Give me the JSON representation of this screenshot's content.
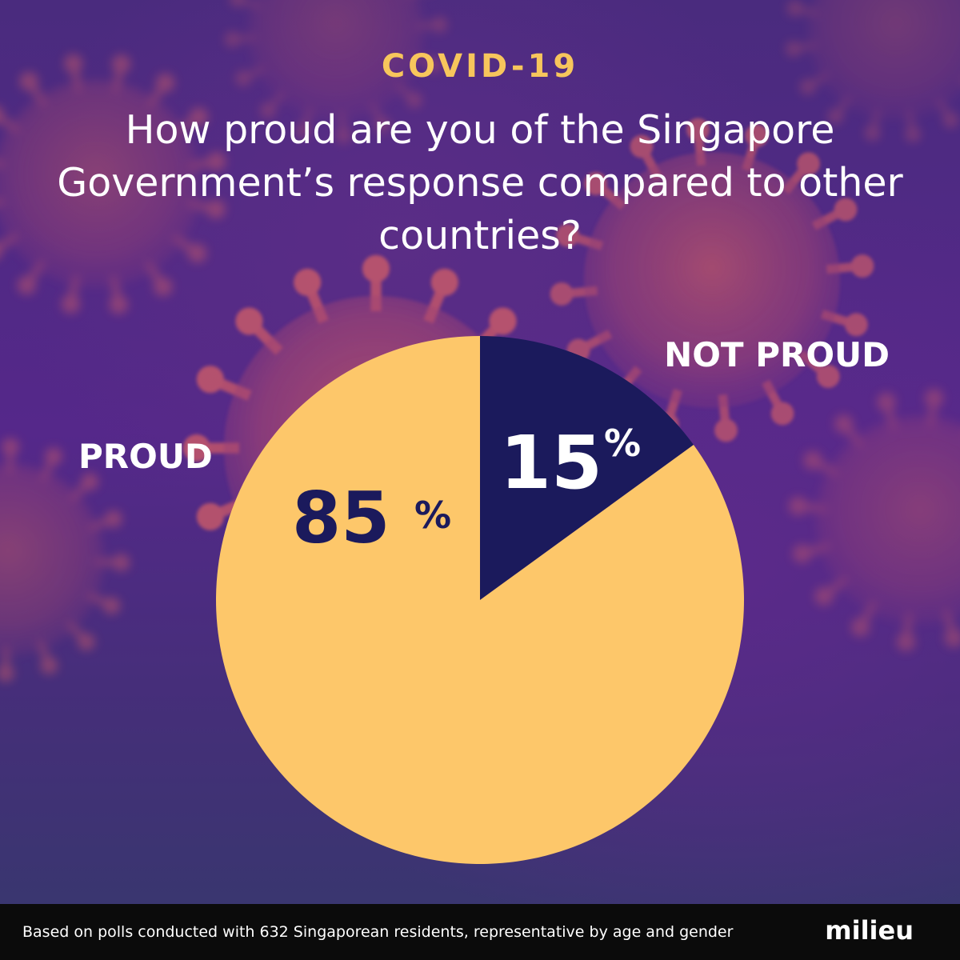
{
  "header": {
    "kicker": "COVID-19",
    "title": "How proud are you of the Singapore Government’s response compared to other countries?"
  },
  "chart_data": {
    "type": "pie",
    "slices": [
      {
        "label": "PROUD",
        "value": 85,
        "display": "85",
        "unit": "%",
        "color": "#fdc76a",
        "text_color": "#1b1a5c"
      },
      {
        "label": "NOT PROUD",
        "value": 15,
        "display": "15",
        "unit": "%",
        "color": "#1b1a5c",
        "text_color": "#ffffff"
      }
    ],
    "start_angle_deg": 0,
    "direction": "clockwise"
  },
  "footer": {
    "note": "Based on polls conducted with 632 Singaporean residents, representative by age and gender",
    "brand": "milieu"
  }
}
